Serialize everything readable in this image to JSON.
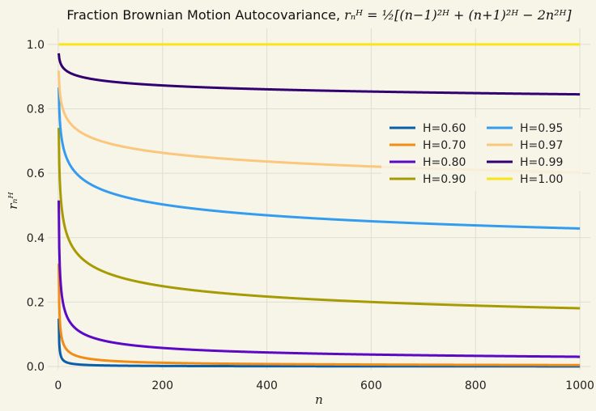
{
  "chart_data": {
    "type": "line",
    "title": "Fraction Brownian Motion Autocovariance, r_n^H = ½[(n−1)^2H + (n+1)^2H − 2n^2H]",
    "title_parts": {
      "prefix": "Fraction Brownian Motion Autocovariance, ",
      "math": "rₙᴴ = ½[(n−1)²ᴴ + (n+1)²ᴴ − 2n²ᴴ]"
    },
    "xlabel": "n",
    "ylabel": "rₙᴴ",
    "xlim": [
      -20,
      1020
    ],
    "ylim": [
      -0.01,
      1.05
    ],
    "x_ticks": [
      0,
      200,
      400,
      600,
      800,
      1000
    ],
    "y_ticks": [
      0.0,
      0.2,
      0.4,
      0.6,
      0.8,
      1.0
    ],
    "x_tick_labels": [
      "0",
      "200",
      "400",
      "600",
      "800",
      "1000"
    ],
    "y_tick_labels": [
      "0.0",
      "0.2",
      "0.4",
      "0.6",
      "0.8",
      "1.0"
    ],
    "grid": true,
    "legend_position": "upper-right",
    "legend_columns": 2,
    "x_range": [
      1,
      1000
    ],
    "series": [
      {
        "name": "H=0.60",
        "H": 0.6,
        "color": "#0a5fa8"
      },
      {
        "name": "H=0.70",
        "H": 0.7,
        "color": "#f28c14"
      },
      {
        "name": "H=0.80",
        "H": 0.8,
        "color": "#5b09c4"
      },
      {
        "name": "H=0.90",
        "H": 0.9,
        "color": "#a79b04"
      },
      {
        "name": "H=0.95",
        "H": 0.95,
        "color": "#349cf0"
      },
      {
        "name": "H=0.97",
        "H": 0.97,
        "color": "#fbc77c"
      },
      {
        "name": "H=0.99",
        "H": 0.99,
        "color": "#320070"
      },
      {
        "name": "H=1.00",
        "H": 1.0,
        "color": "#fae41a"
      }
    ]
  }
}
